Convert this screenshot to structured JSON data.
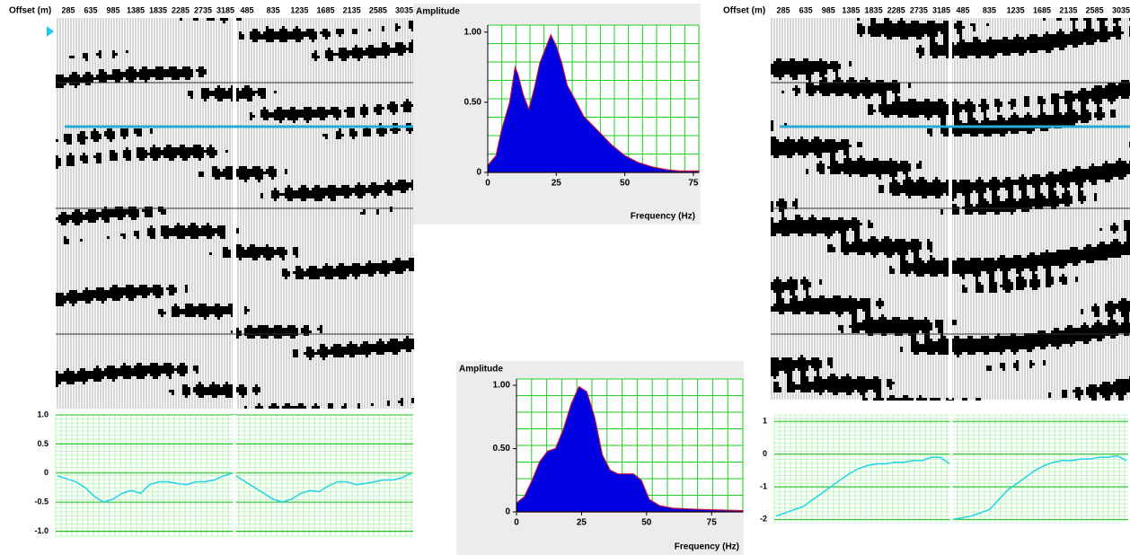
{
  "chart_data": [
    {
      "type": "seismic",
      "x_label": "Offset (m)",
      "categories": [
        "285",
        "635",
        "985",
        "1385",
        "1835",
        "2285",
        "2735",
        "3185",
        "485",
        "835",
        "1235",
        "1685",
        "2135",
        "2585",
        "3035"
      ]
    },
    {
      "type": "line",
      "ylim": [
        -1.1,
        1.0
      ],
      "yticks": [
        {
          "value": 1,
          "label": "1.0"
        },
        {
          "value": 0.5,
          "label": "0.5"
        },
        0,
        {
          "value": -0.5,
          "label": "-0.5"
        },
        {
          "value": -1,
          "label": "-1.0"
        }
      ],
      "series": [
        {
          "color": "#22d3e6",
          "values": [
            -0.05,
            -0.1,
            -0.15,
            -0.25,
            -0.4,
            -0.5,
            -0.45,
            -0.35,
            -0.3,
            -0.35,
            -0.2,
            -0.15,
            -0.15,
            -0.18,
            -0.2,
            -0.15,
            -0.15,
            -0.12,
            -0.05,
            0
          ]
        },
        {
          "color": "#22d3e6",
          "values": [
            -0.05,
            -0.15,
            -0.25,
            -0.35,
            -0.45,
            -0.5,
            -0.45,
            -0.35,
            -0.3,
            -0.32,
            -0.22,
            -0.15,
            -0.15,
            -0.2,
            -0.18,
            -0.15,
            -0.12,
            -0.12,
            -0.08,
            0
          ]
        }
      ]
    },
    {
      "type": "area",
      "y_label": "Amplitude",
      "x_label": "Frequency (Hz)",
      "xlim": [
        0,
        77
      ],
      "xticks": [
        0,
        25,
        50,
        75
      ],
      "ylim": [
        0,
        1.05
      ],
      "yticks": [
        0,
        {
          "value": 0.5,
          "label": "0.50"
        },
        {
          "value": 1,
          "label": "1.00"
        }
      ],
      "color": "#0000e0",
      "edge_color": "#c0143c",
      "x": [
        0,
        3,
        5,
        8,
        10,
        11,
        13,
        15,
        17,
        19,
        21,
        23,
        25,
        27,
        29,
        31,
        35,
        40,
        45,
        50,
        55,
        60,
        65,
        70,
        77
      ],
      "values": [
        0.05,
        0.12,
        0.3,
        0.5,
        0.75,
        0.7,
        0.55,
        0.45,
        0.6,
        0.78,
        0.88,
        0.98,
        0.9,
        0.78,
        0.62,
        0.55,
        0.4,
        0.3,
        0.2,
        0.12,
        0.07,
        0.04,
        0.02,
        0.01,
        0.01
      ]
    },
    {
      "type": "area",
      "y_label": "Amplitude",
      "x_label": "Frequency (Hz)",
      "xlim": [
        0,
        87
      ],
      "xticks": [
        0,
        25,
        50,
        75
      ],
      "ylim": [
        0,
        1.05
      ],
      "yticks": [
        0,
        {
          "value": 0.5,
          "label": "0.50"
        },
        {
          "value": 1,
          "label": "1.00"
        }
      ],
      "color": "#0000e0",
      "edge_color": "#c0143c",
      "x": [
        0,
        3,
        6,
        9,
        12,
        15,
        18,
        21,
        24,
        27,
        30,
        33,
        36,
        39,
        42,
        45,
        48,
        51,
        55,
        60,
        70,
        87
      ],
      "values": [
        0.07,
        0.12,
        0.25,
        0.4,
        0.48,
        0.5,
        0.65,
        0.85,
        0.99,
        0.95,
        0.75,
        0.45,
        0.33,
        0.3,
        0.3,
        0.3,
        0.25,
        0.1,
        0.05,
        0.03,
        0.02,
        0.01
      ]
    },
    {
      "type": "seismic",
      "x_label": "Offset (m)",
      "categories": [
        "285",
        "635",
        "985",
        "1385",
        "1835",
        "2285",
        "2735",
        "3185",
        "485",
        "835",
        "1235",
        "1685",
        "2135",
        "2585",
        "3035"
      ]
    },
    {
      "type": "line",
      "ylim": [
        -2.1,
        1.2
      ],
      "yticks": [
        1,
        0,
        -1,
        -2
      ],
      "series": [
        {
          "color": "#22d3e6",
          "values": [
            -1.9,
            -1.8,
            -1.7,
            -1.6,
            -1.4,
            -1.2,
            -1.0,
            -0.8,
            -0.6,
            -0.45,
            -0.35,
            -0.3,
            -0.3,
            -0.25,
            -0.25,
            -0.2,
            -0.2,
            -0.1,
            -0.1,
            -0.3
          ]
        },
        {
          "color": "#22d3e6",
          "values": [
            -2.0,
            -1.95,
            -1.9,
            -1.8,
            -1.7,
            -1.4,
            -1.1,
            -0.9,
            -0.7,
            -0.5,
            -0.35,
            -0.25,
            -0.2,
            -0.2,
            -0.15,
            -0.15,
            -0.1,
            -0.1,
            -0.05,
            -0.2
          ]
        }
      ]
    }
  ]
}
